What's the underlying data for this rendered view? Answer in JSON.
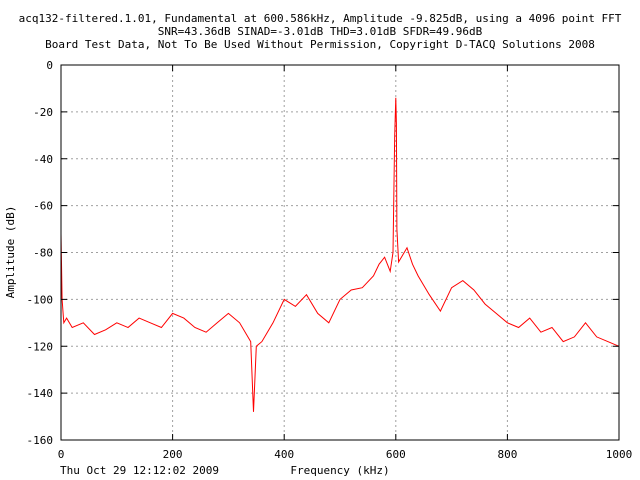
{
  "chart_data": {
    "type": "line",
    "title_lines": [
      "acq132-filtered.1.01, Fundamental at 600.586kHz, Amplitude -9.825dB, using a 4096 point FFT",
      "SNR=43.36dB SINAD=-3.01dB THD=3.01dB SFDR=49.96dB",
      "Board Test Data, Not To Be Used Without Permission, Copyright D-TACQ Solutions 2008"
    ],
    "xlabel": "Frequency (kHz)",
    "ylabel": "Amplitude (dB)",
    "xlim": [
      0,
      1000
    ],
    "ylim": [
      -160,
      0
    ],
    "x_ticks": [
      0,
      200,
      400,
      600,
      800,
      1000
    ],
    "y_ticks": [
      0,
      -20,
      -40,
      -60,
      -80,
      -100,
      -120,
      -140,
      -160
    ],
    "grid": true,
    "timestamp": "Thu Oct 29 12:12:02 2009",
    "series_color": "#ff0000",
    "series": [
      {
        "x": [
          0,
          2,
          5,
          10,
          20,
          40,
          60,
          80,
          100,
          120,
          140,
          160,
          180,
          200,
          220,
          240,
          260,
          280,
          300,
          320,
          340,
          345,
          350,
          360,
          380,
          400,
          420,
          440,
          460,
          480,
          500,
          520,
          540,
          560,
          570,
          580,
          590,
          595,
          598,
          600,
          601,
          602,
          605,
          610,
          620,
          630,
          640,
          660,
          680,
          700,
          720,
          740,
          760,
          780,
          800,
          820,
          840,
          860,
          880,
          900,
          920,
          940,
          960,
          980,
          1000
        ],
        "values": [
          -72,
          -100,
          -110,
          -108,
          -112,
          -110,
          -115,
          -113,
          -110,
          -112,
          -108,
          -110,
          -112,
          -106,
          -108,
          -112,
          -114,
          -110,
          -106,
          -110,
          -118,
          -148,
          -120,
          -118,
          -110,
          -100,
          -103,
          -98,
          -106,
          -110,
          -100,
          -96,
          -95,
          -90,
          -85,
          -82,
          -88,
          -80,
          -30,
          -14,
          -25,
          -70,
          -84,
          -82,
          -78,
          -85,
          -90,
          -98,
          -105,
          -95,
          -92,
          -96,
          -102,
          -106,
          -110,
          -112,
          -108,
          -114,
          -112,
          -118,
          -116,
          -110,
          -116,
          -118,
          -120
        ]
      }
    ]
  }
}
